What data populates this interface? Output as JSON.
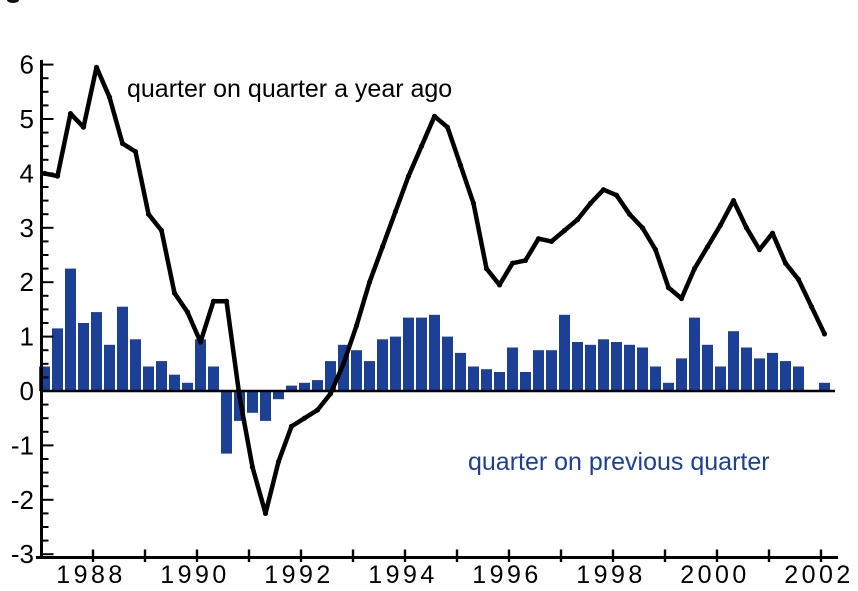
{
  "labels": {
    "line_series": "quarter on quarter a year ago",
    "bar_series": "quarter on previous quarter"
  },
  "colors": {
    "bar": "#1c4096",
    "bar_label_text": "#1c3f96",
    "line": "#000000",
    "axis": "#000000",
    "background": "#ffffff"
  },
  "y_axis": {
    "tick_labels": [
      "6",
      "5",
      "4",
      "3",
      "2",
      "1",
      "0",
      "-1",
      "-2",
      "-3"
    ],
    "tick_values": [
      6,
      5,
      4,
      3,
      2,
      1,
      0,
      -1,
      -2,
      -3
    ],
    "minor_tick_step": 0.25,
    "range": [
      -3,
      6
    ]
  },
  "x_axis": {
    "tick_years": [
      1988,
      1989,
      1990,
      1991,
      1992,
      1993,
      1994,
      1995,
      1996,
      1997,
      1998,
      1999,
      2000,
      2001,
      2002
    ],
    "year_labels": [
      "1988",
      "1990",
      "1992",
      "1994",
      "1996",
      "1998",
      "2000",
      "2002"
    ],
    "label_years": [
      1988,
      1990,
      1992,
      1994,
      1996,
      1998,
      2000,
      2002
    ]
  },
  "chart_data": {
    "type": "combo",
    "title": "",
    "xlabel": "",
    "ylabel": "",
    "ylim": [
      -3,
      6
    ],
    "grid": false,
    "legend_position": "inline-annotations",
    "categories": [
      "1987Q1",
      "1987Q2",
      "1987Q3",
      "1987Q4",
      "1988Q1",
      "1988Q2",
      "1988Q3",
      "1988Q4",
      "1989Q1",
      "1989Q2",
      "1989Q3",
      "1989Q4",
      "1990Q1",
      "1990Q2",
      "1990Q3",
      "1990Q4",
      "1991Q1",
      "1991Q2",
      "1991Q3",
      "1991Q4",
      "1992Q1",
      "1992Q2",
      "1992Q3",
      "1992Q4",
      "1993Q1",
      "1993Q2",
      "1993Q3",
      "1993Q4",
      "1994Q1",
      "1994Q2",
      "1994Q3",
      "1994Q4",
      "1995Q1",
      "1995Q2",
      "1995Q3",
      "1995Q4",
      "1996Q1",
      "1996Q2",
      "1996Q3",
      "1996Q4",
      "1997Q1",
      "1997Q2",
      "1997Q3",
      "1997Q4",
      "1998Q1",
      "1998Q2",
      "1998Q3",
      "1998Q4",
      "1999Q1",
      "1999Q2",
      "1999Q3",
      "1999Q4",
      "2000Q1",
      "2000Q2",
      "2000Q3",
      "2000Q4",
      "2001Q1",
      "2001Q2",
      "2001Q3",
      "2001Q4",
      "2002Q1"
    ],
    "series": [
      {
        "name": "quarter on previous quarter",
        "type": "bar",
        "values": [
          0.45,
          1.15,
          2.25,
          1.25,
          1.45,
          0.85,
          1.55,
          0.95,
          0.45,
          0.55,
          0.3,
          0.15,
          0.95,
          0.45,
          -1.15,
          -0.55,
          -0.4,
          -0.55,
          -0.15,
          0.1,
          0.15,
          0.2,
          0.55,
          0.85,
          0.75,
          0.55,
          0.95,
          1.0,
          1.35,
          1.35,
          1.4,
          1.0,
          0.7,
          0.45,
          0.4,
          0.35,
          0.8,
          0.35,
          0.75,
          0.75,
          1.4,
          0.9,
          0.85,
          0.95,
          0.9,
          0.85,
          0.8,
          0.45,
          0.15,
          0.6,
          1.35,
          0.85,
          0.45,
          1.1,
          0.8,
          0.6,
          0.7,
          0.55,
          0.45,
          0.0,
          0.15
        ]
      },
      {
        "name": "quarter on quarter a year ago",
        "type": "line",
        "values": [
          4.0,
          3.95,
          5.1,
          4.85,
          5.95,
          5.4,
          4.55,
          4.4,
          3.25,
          2.95,
          1.8,
          1.45,
          0.9,
          1.65,
          1.65,
          -0.1,
          -1.4,
          -2.25,
          -1.3,
          -0.65,
          -0.5,
          -0.35,
          -0.05,
          0.5,
          1.2,
          2.0,
          2.65,
          3.3,
          3.95,
          4.5,
          5.05,
          4.85,
          4.15,
          3.45,
          2.25,
          1.95,
          2.35,
          2.4,
          2.8,
          2.75,
          2.95,
          3.15,
          3.45,
          3.7,
          3.6,
          3.25,
          3.0,
          2.6,
          1.9,
          1.7,
          2.25,
          2.65,
          3.05,
          3.5,
          3.0,
          2.6,
          2.9,
          2.35,
          2.05,
          1.55,
          1.05
        ]
      }
    ]
  }
}
